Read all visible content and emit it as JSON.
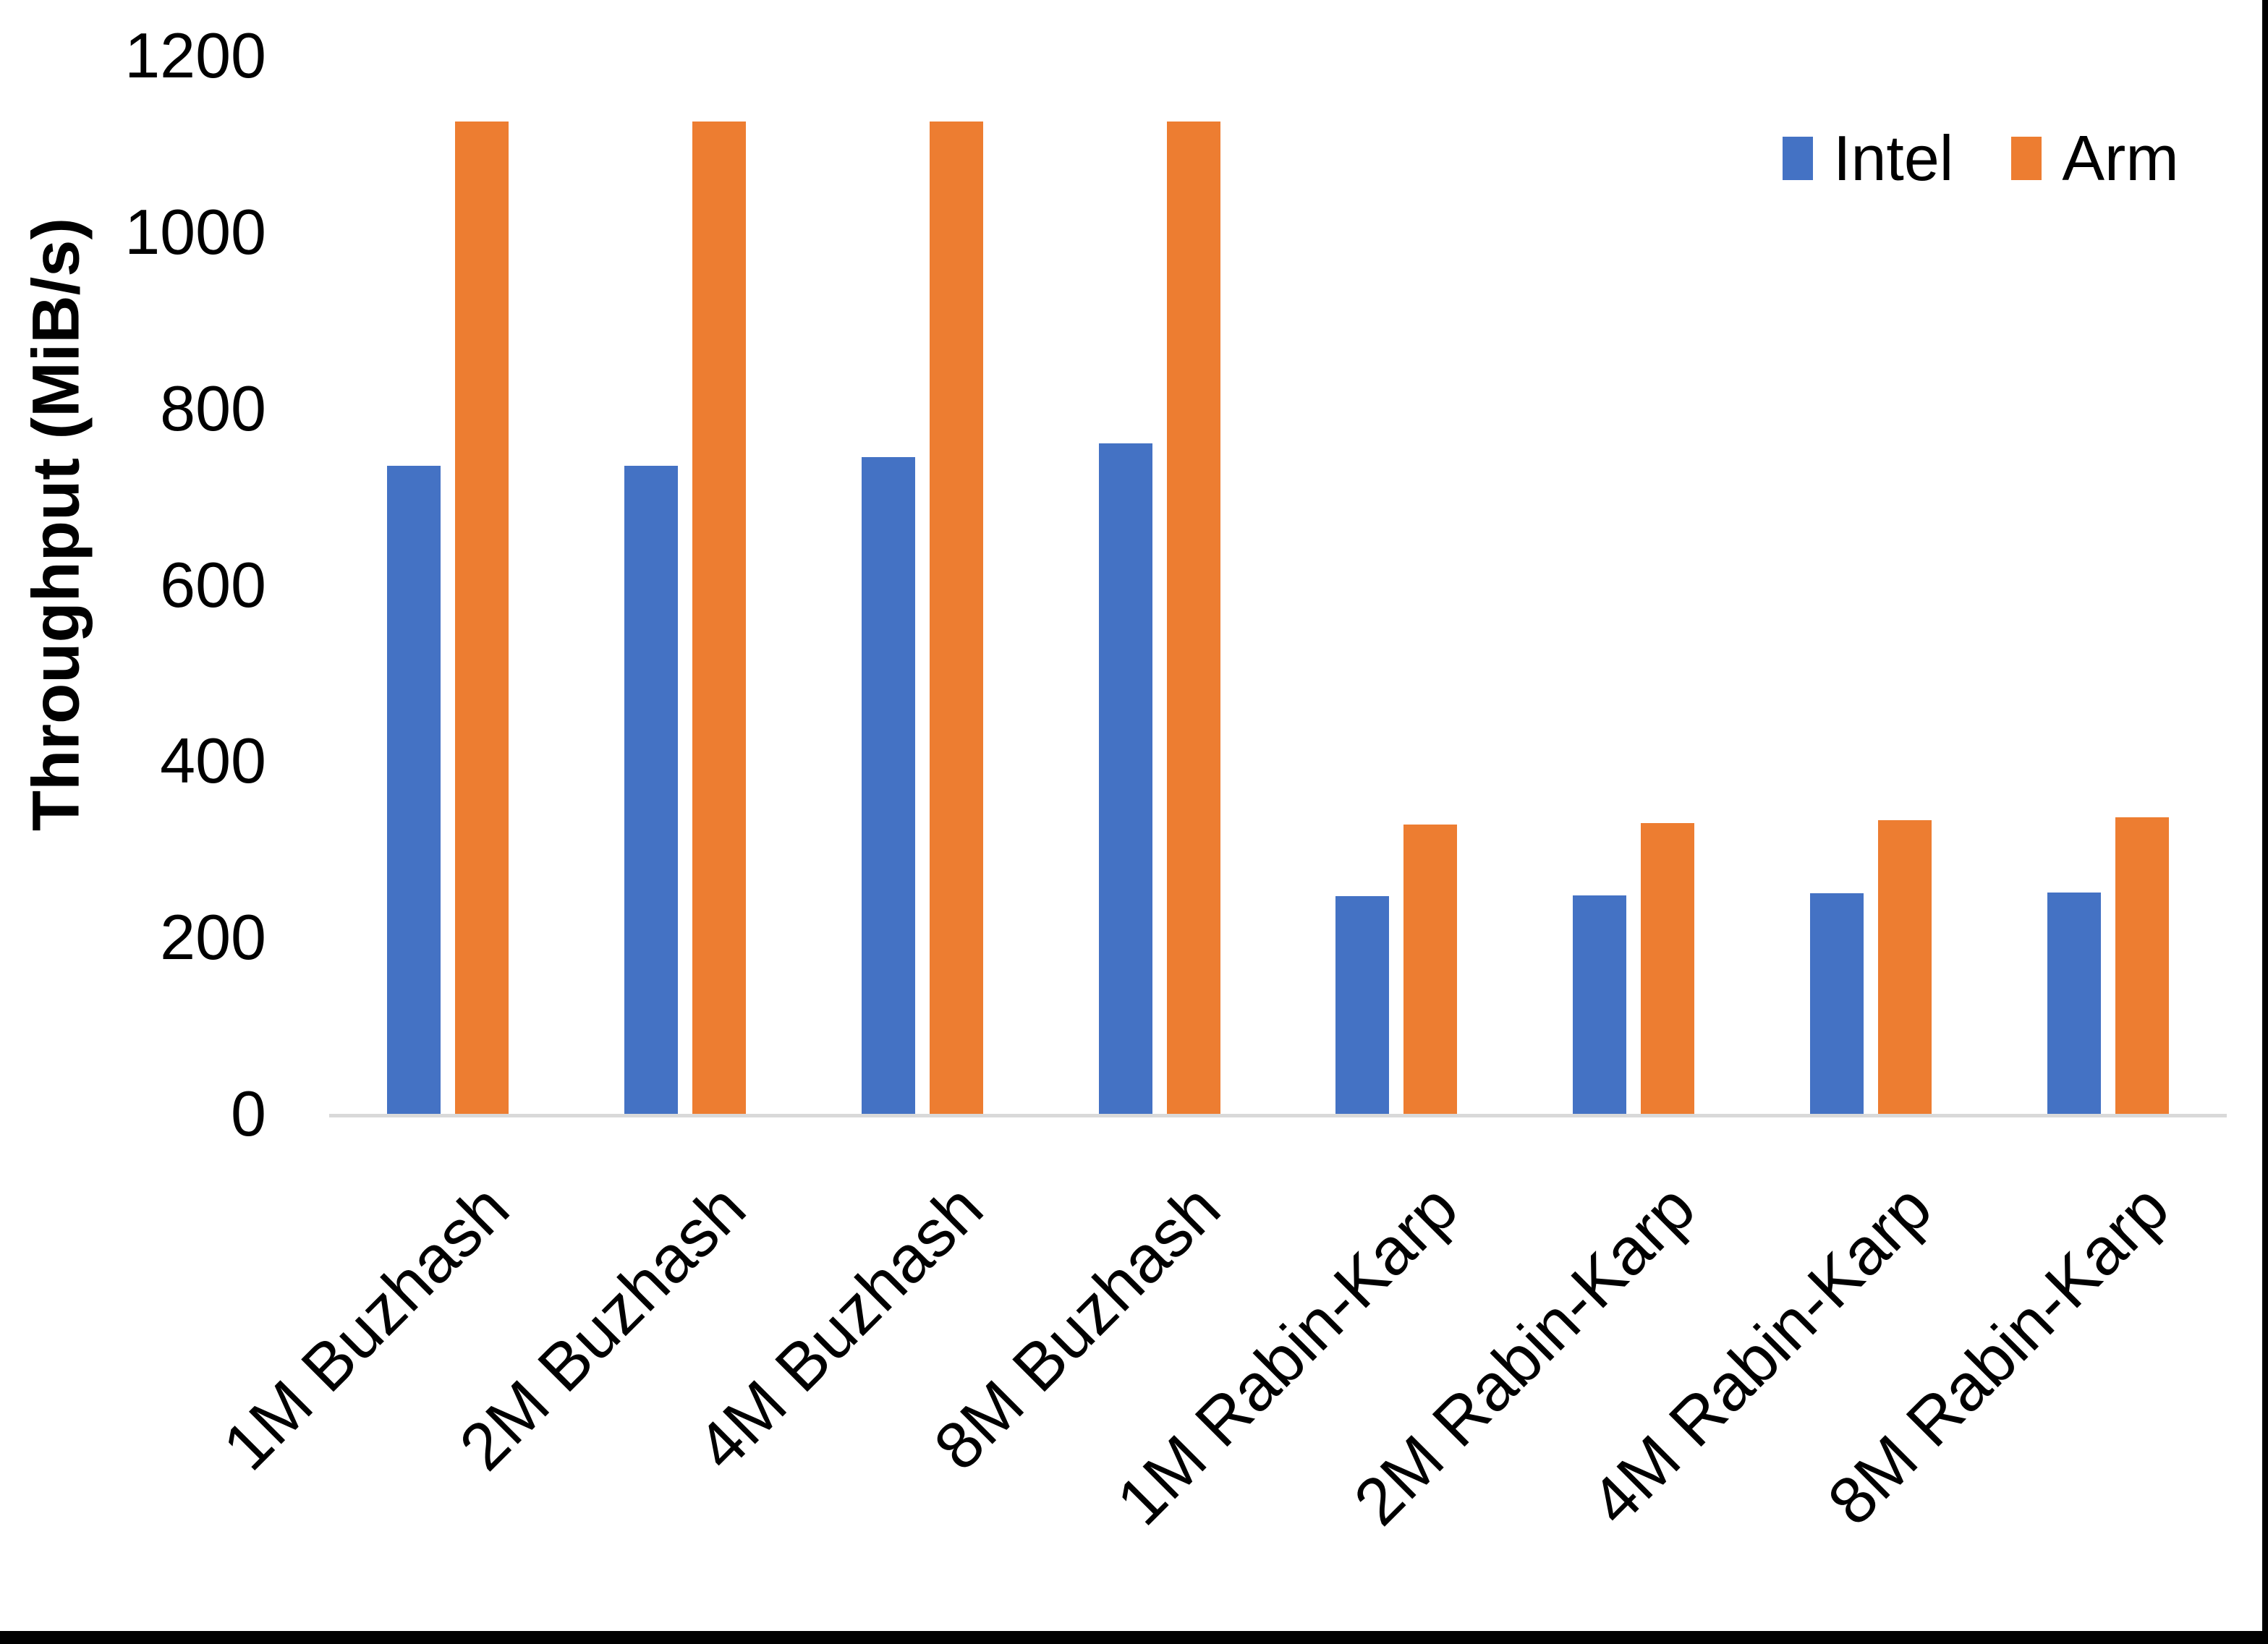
{
  "chart_data": {
    "type": "bar",
    "title": "",
    "xlabel": "",
    "ylabel": "Throughput (MiB/s)",
    "ylim": [
      0,
      1200
    ],
    "yticks": [
      0,
      200,
      400,
      600,
      800,
      1000,
      1200
    ],
    "grid": false,
    "legend_position": "top-right",
    "categories": [
      "1M Buzhash",
      "2M Buzhash",
      "4M Buzhash",
      "8M Buzhash",
      "1M Rabin-Karp",
      "2M Rabin-Karp",
      "4M Rabin-Karp",
      "8M Rabin-Karp"
    ],
    "series": [
      {
        "name": "Intel",
        "color": "#4472C4",
        "values": [
          735,
          735,
          745,
          760,
          247,
          248,
          250,
          251
        ]
      },
      {
        "name": "Arm",
        "color": "#ED7D31",
        "values": [
          1125,
          1125,
          1125,
          1125,
          328,
          330,
          333,
          336
        ]
      }
    ],
    "colors": {
      "intel": "#4472C4",
      "arm": "#ED7D31",
      "axis_line": "#D9D9D9",
      "text": "#000000",
      "background": "#FFFFFF",
      "frame": "#000000"
    }
  }
}
